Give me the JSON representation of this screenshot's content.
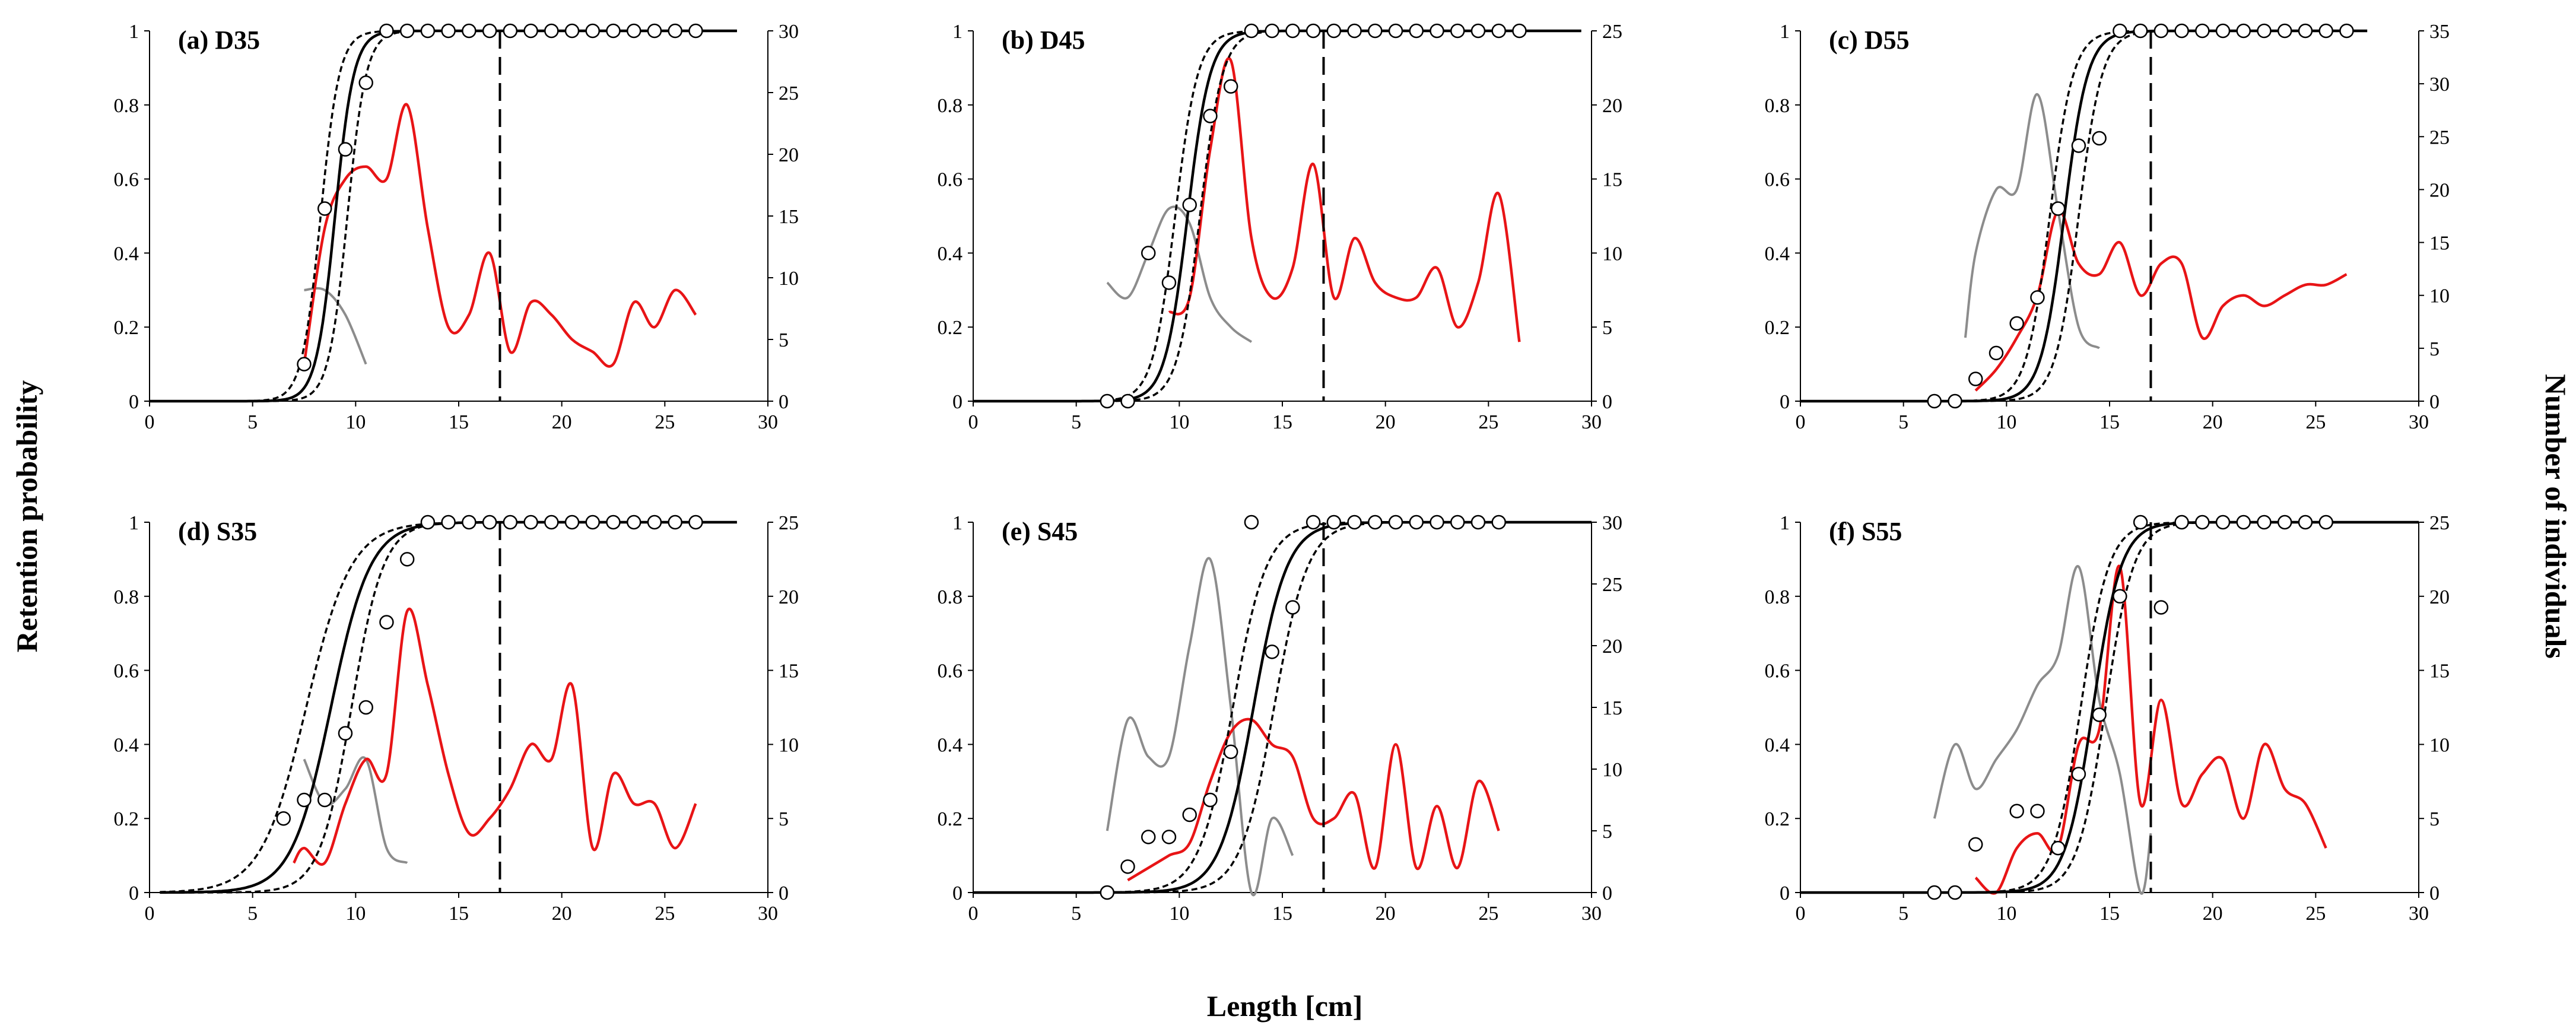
{
  "figure": {
    "ylabel_left": "Retention probability",
    "ylabel_right": "Number of individuals",
    "xlabel": "Length [cm]",
    "colors": {
      "curve": "#000000",
      "ci": "#000000",
      "obs": "#000000",
      "count_line": "#e81416",
      "gray_line": "#8c8c8c",
      "threshold": "#000000"
    }
  },
  "chart_data": [
    {
      "type": "line",
      "title": "(a) D35",
      "xlim": [
        0,
        30
      ],
      "ylim": [
        0,
        1
      ],
      "y2lim": [
        0,
        30
      ],
      "xticks": [
        0,
        5,
        10,
        15,
        20,
        25,
        30
      ],
      "yticks": [
        0,
        0.2,
        0.4,
        0.6,
        0.8,
        1
      ],
      "y2ticks": [
        0,
        5,
        10,
        15,
        20,
        25,
        30
      ],
      "fit": {
        "l50": 9.0,
        "sr": 2.0,
        "x_start": 0,
        "x_end": 28.5
      },
      "ci_lower": {
        "l50": 9.6,
        "sr": 2.0
      },
      "ci_upper": {
        "l50": 8.3,
        "sr": 2.0
      },
      "threshold_x": 17,
      "observed": {
        "x": [
          7.5,
          8.5,
          9.5,
          10.5,
          11.5,
          12.5,
          13.5,
          14.5,
          15.5,
          16.5,
          17.5,
          18.5,
          19.5,
          20.5,
          21.5,
          22.5,
          23.5,
          24.5,
          25.5,
          26.5
        ],
        "y": [
          0.1,
          0.52,
          0.68,
          0.86,
          1,
          1,
          1,
          1,
          1,
          1,
          1,
          1,
          1,
          1,
          1,
          1,
          1,
          1,
          1,
          1
        ]
      },
      "count_series": {
        "name": "red",
        "x": [
          7.5,
          8.5,
          9.5,
          10.5,
          11.5,
          12.5,
          13.5,
          14.5,
          15.5,
          16.5,
          17.5,
          18.5,
          19.5,
          20.5,
          21.5,
          22.5,
          23.5,
          24.5,
          25.5,
          26.5
        ],
        "y": [
          3,
          14,
          18,
          19,
          18,
          24,
          14,
          6,
          7,
          12,
          4,
          8,
          7,
          5,
          4,
          3,
          8,
          6,
          9,
          7
        ]
      },
      "gray_series": {
        "name": "gray",
        "x": [
          7.5,
          8.5,
          9.5,
          10.5
        ],
        "y": [
          9,
          9,
          7,
          3
        ]
      }
    },
    {
      "type": "line",
      "title": "(b) D45",
      "xlim": [
        0,
        30
      ],
      "ylim": [
        0,
        1
      ],
      "y2lim": [
        0,
        25
      ],
      "xticks": [
        0,
        5,
        10,
        15,
        20,
        25,
        30
      ],
      "yticks": [
        0,
        0.2,
        0.4,
        0.6,
        0.8,
        1
      ],
      "y2ticks": [
        0,
        5,
        10,
        15,
        20,
        25
      ],
      "fit": {
        "l50": 10.4,
        "sr": 2.4,
        "x_start": 0,
        "x_end": 29.5
      },
      "ci_lower": {
        "l50": 11.0,
        "sr": 2.4
      },
      "ci_upper": {
        "l50": 9.8,
        "sr": 2.4
      },
      "threshold_x": 17,
      "observed": {
        "x": [
          6.5,
          7.5,
          8.5,
          9.5,
          10.5,
          11.5,
          12.5,
          13.5,
          14.5,
          15.5,
          16.5,
          17.5,
          18.5,
          19.5,
          20.5,
          21.5,
          22.5,
          23.5,
          24.5,
          25.5,
          26.5
        ],
        "y": [
          0,
          0,
          0.4,
          0.32,
          0.53,
          0.77,
          0.85,
          1,
          1,
          1,
          1,
          1,
          1,
          1,
          1,
          1,
          1,
          1,
          1,
          1,
          1
        ]
      },
      "count_series": {
        "name": "red",
        "x": [
          9.5,
          10.5,
          11.5,
          12.5,
          13.5,
          14.5,
          15.5,
          16.5,
          17.5,
          18.5,
          19.5,
          20.5,
          21.5,
          22.5,
          23.5,
          24.5,
          25.5,
          26.5
        ],
        "y": [
          6,
          7,
          17,
          23,
          11,
          7,
          9,
          16,
          7,
          11,
          8,
          7,
          7,
          9,
          5,
          8,
          14,
          4
        ]
      },
      "gray_series": {
        "name": "gray",
        "x": [
          6.5,
          7.5,
          8.5,
          9.5,
          10.5,
          11.5,
          12.5,
          13.5
        ],
        "y": [
          8,
          7,
          10,
          13,
          12,
          7,
          5,
          4
        ]
      }
    },
    {
      "type": "line",
      "title": "(c) D55",
      "xlim": [
        0,
        30
      ],
      "ylim": [
        0,
        1
      ],
      "y2lim": [
        0,
        35
      ],
      "xticks": [
        0,
        5,
        10,
        15,
        20,
        25,
        30
      ],
      "yticks": [
        0,
        0.2,
        0.4,
        0.6,
        0.8,
        1
      ],
      "y2ticks": [
        0,
        5,
        10,
        15,
        20,
        25,
        30,
        35
      ],
      "fit": {
        "l50": 12.8,
        "sr": 2.5,
        "x_start": 0,
        "x_end": 27.5
      },
      "ci_lower": {
        "l50": 13.5,
        "sr": 2.5
      },
      "ci_upper": {
        "l50": 12.1,
        "sr": 2.5
      },
      "threshold_x": 17,
      "observed": {
        "x": [
          6.5,
          7.5,
          8.5,
          9.5,
          10.5,
          11.5,
          12.5,
          13.5,
          14.5,
          15.5,
          16.5,
          17.5,
          18.5,
          19.5,
          20.5,
          21.5,
          22.5,
          23.5,
          24.5,
          25.5,
          26.5
        ],
        "y": [
          0,
          0,
          0.06,
          0.13,
          0.21,
          0.28,
          0.52,
          0.69,
          0.71,
          1,
          1,
          1,
          1,
          1,
          1,
          1,
          1,
          1,
          1,
          1,
          1
        ]
      },
      "count_series": {
        "name": "red",
        "x": [
          8.5,
          9.5,
          10.5,
          11.5,
          12.5,
          13.5,
          14.5,
          15.5,
          16.5,
          17.5,
          18.5,
          19.5,
          20.5,
          21.5,
          22.5,
          23.5,
          24.5,
          25.5,
          26.5
        ],
        "y": [
          1,
          3,
          6,
          10,
          18,
          13,
          12,
          15,
          10,
          13,
          13,
          6,
          9,
          10,
          9,
          10,
          11,
          11,
          12
        ]
      },
      "gray_series": {
        "name": "gray",
        "x": [
          8,
          8.5,
          9.5,
          10.5,
          11.5,
          12.5,
          13.5,
          14.5
        ],
        "y": [
          6,
          14,
          20,
          20,
          29,
          18,
          7,
          5
        ]
      }
    },
    {
      "type": "line",
      "title": "(d) S35",
      "xlim": [
        0,
        30
      ],
      "ylim": [
        0,
        1
      ],
      "y2lim": [
        0,
        25
      ],
      "xticks": [
        0,
        5,
        10,
        15,
        20,
        25,
        30
      ],
      "yticks": [
        0,
        0.2,
        0.4,
        0.6,
        0.8,
        1
      ],
      "y2ticks": [
        0,
        5,
        10,
        15,
        20,
        25
      ],
      "fit": {
        "l50": 8.8,
        "sr": 4.2,
        "x_start": 0.5,
        "x_end": 28.5
      },
      "ci_lower": {
        "l50": 9.8,
        "sr": 3.4
      },
      "ci_upper": {
        "l50": 7.6,
        "sr": 4.8
      },
      "threshold_x": 17,
      "observed": {
        "x": [
          6.5,
          7.5,
          8.5,
          9.5,
          10.5,
          11.5,
          12.5,
          13.5,
          14.5,
          15.5,
          16.5,
          17.5,
          18.5,
          19.5,
          20.5,
          21.5,
          22.5,
          23.5,
          24.5,
          25.5,
          26.5
        ],
        "y": [
          0.2,
          0.25,
          0.25,
          0.43,
          0.5,
          0.73,
          0.9,
          1,
          1,
          1,
          1,
          1,
          1,
          1,
          1,
          1,
          1,
          1,
          1,
          1,
          1
        ]
      },
      "count_series": {
        "name": "red",
        "x": [
          7,
          7.5,
          8.5,
          9.5,
          10.5,
          11.5,
          12.5,
          13.5,
          14.5,
          15.5,
          16.5,
          17.5,
          18.5,
          19.5,
          20.5,
          21.5,
          22.5,
          23.5,
          24.5,
          25.5,
          26.5
        ],
        "y": [
          2,
          3,
          2,
          6,
          9,
          8,
          19,
          14,
          8,
          4,
          5,
          7,
          10,
          9,
          14,
          3,
          8,
          6,
          6,
          3,
          6
        ]
      },
      "gray_series": {
        "name": "gray",
        "x": [
          7.5,
          8.5,
          9.5,
          10.5,
          11.5,
          12.5
        ],
        "y": [
          9,
          6,
          7,
          9,
          3,
          2
        ]
      }
    },
    {
      "type": "line",
      "title": "(e) S45",
      "xlim": [
        0,
        30
      ],
      "ylim": [
        0,
        1
      ],
      "y2lim": [
        0,
        30
      ],
      "xticks": [
        0,
        5,
        10,
        15,
        20,
        25,
        30
      ],
      "yticks": [
        0,
        0.2,
        0.4,
        0.6,
        0.8,
        1
      ],
      "y2ticks": [
        0,
        5,
        10,
        15,
        20,
        25,
        30
      ],
      "fit": {
        "l50": 13.6,
        "sr": 3.6,
        "x_start": 0,
        "x_end": 30
      },
      "ci_lower": {
        "l50": 14.6,
        "sr": 3.6
      },
      "ci_upper": {
        "l50": 12.6,
        "sr": 3.6
      },
      "threshold_x": 17,
      "observed": {
        "x": [
          6.5,
          7.5,
          8.5,
          9.5,
          10.5,
          11.5,
          12.5,
          13.5,
          14.5,
          15.5,
          16.5,
          17.5,
          18.5,
          19.5,
          20.5,
          21.5,
          22.5,
          23.5,
          24.5,
          25.5
        ],
        "y": [
          0,
          0.07,
          0.15,
          0.15,
          0.21,
          0.25,
          0.38,
          1,
          0.65,
          0.77,
          1,
          1,
          1,
          1,
          1,
          1,
          1,
          1,
          1,
          1
        ]
      },
      "count_series": {
        "name": "red",
        "x": [
          7.5,
          8.5,
          9.5,
          10.5,
          11.5,
          12.5,
          13.5,
          14.5,
          15.5,
          16.5,
          17.5,
          18.5,
          19.5,
          20.5,
          21.5,
          22.5,
          23.5,
          24.5,
          25.5
        ],
        "y": [
          1,
          2,
          3,
          4,
          9,
          13,
          14,
          12,
          11,
          6,
          6,
          8,
          2,
          12,
          2,
          7,
          2,
          9,
          5
        ]
      },
      "gray_series": {
        "name": "gray",
        "x": [
          6.5,
          7.5,
          8.5,
          9.5,
          10.5,
          11.5,
          12.5,
          13.5,
          14.5,
          15.5
        ],
        "y": [
          5,
          14,
          11,
          11,
          20,
          27,
          15,
          0,
          6,
          3
        ]
      }
    },
    {
      "type": "line",
      "title": "(f) S55",
      "xlim": [
        0,
        30
      ],
      "ylim": [
        0,
        1
      ],
      "y2lim": [
        0,
        25
      ],
      "xticks": [
        0,
        5,
        10,
        15,
        20,
        25,
        30
      ],
      "yticks": [
        0,
        0.2,
        0.4,
        0.6,
        0.8,
        1
      ],
      "y2ticks": [
        0,
        5,
        10,
        15,
        20,
        25
      ],
      "fit": {
        "l50": 14.2,
        "sr": 3.0,
        "x_start": 0,
        "x_end": 30
      },
      "ci_lower": {
        "l50": 14.8,
        "sr": 3.0
      },
      "ci_upper": {
        "l50": 13.6,
        "sr": 3.0
      },
      "threshold_x": 17,
      "observed": {
        "x": [
          6.5,
          7.5,
          8.5,
          10.5,
          11.5,
          12.5,
          13.5,
          14.5,
          15.5,
          16.5,
          17.5,
          18.5,
          19.5,
          20.5,
          21.5,
          22.5,
          23.5,
          24.5,
          25.5
        ],
        "y": [
          0,
          0,
          0.13,
          0.22,
          0.22,
          0.12,
          0.32,
          0.48,
          0.8,
          1,
          0.77,
          1,
          1,
          1,
          1,
          1,
          1,
          1,
          1
        ]
      },
      "count_series": {
        "name": "red",
        "x": [
          8.5,
          9.5,
          10.5,
          11.5,
          12.5,
          13.5,
          14.5,
          15.5,
          16.5,
          17.5,
          18.5,
          19.5,
          20.5,
          21.5,
          22.5,
          23.5,
          24.5,
          25.5
        ],
        "y": [
          1,
          0,
          3,
          4,
          3,
          10,
          11,
          22,
          6,
          13,
          6,
          8,
          9,
          5,
          10,
          7,
          6,
          3
        ]
      },
      "gray_series": {
        "name": "gray",
        "x": [
          6.5,
          7.5,
          8.5,
          9.5,
          10.5,
          11.5,
          12.5,
          13.5,
          14.5,
          15.5,
          16.5,
          17
        ],
        "y": [
          5,
          10,
          7,
          9,
          11,
          14,
          16,
          22,
          13,
          8,
          0,
          4
        ]
      }
    }
  ]
}
